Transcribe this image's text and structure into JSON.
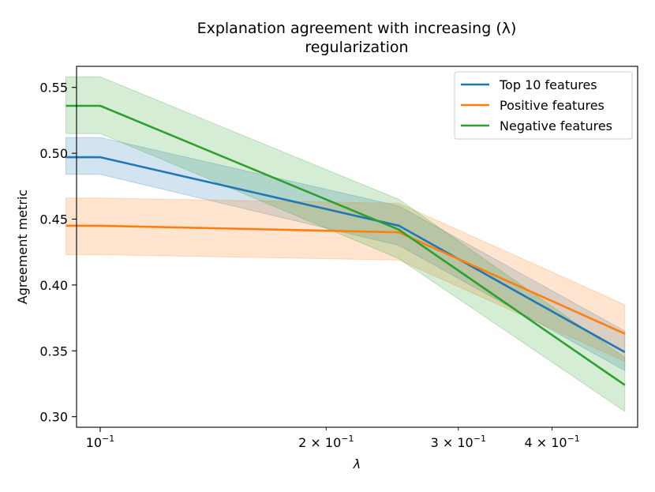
{
  "chart_data": {
    "type": "line",
    "title": [
      "Explanation agreement with increasing (λ)",
      "regularization"
    ],
    "xlabel": "λ",
    "ylabel": "Agreement metric",
    "xscale": "log",
    "xlim": [
      0.093,
      0.52
    ],
    "ylim": [
      0.292,
      0.566
    ],
    "xticks": [
      {
        "value": 0.1,
        "mantissa": "",
        "exponent": "−1"
      },
      {
        "value": 0.2,
        "mantissa": "2 × ",
        "exponent": "−1"
      },
      {
        "value": 0.3,
        "mantissa": "3 × ",
        "exponent": "−1"
      },
      {
        "value": 0.4,
        "mantissa": "4 × ",
        "exponent": "−1"
      }
    ],
    "yticks": [
      0.3,
      0.35,
      0.4,
      0.45,
      0.5,
      0.55
    ],
    "ytick_labels": [
      "0.30",
      "0.35",
      "0.40",
      "0.45",
      "0.50",
      "0.55"
    ],
    "x": [
      0.09,
      0.1,
      0.25,
      0.5
    ],
    "legend_position": "upper right",
    "series": [
      {
        "name": "Top 10 features",
        "color": "#1f77b4",
        "values": [
          0.497,
          0.497,
          0.445,
          0.349
        ],
        "lower": [
          0.484,
          0.484,
          0.43,
          0.335
        ],
        "upper": [
          0.512,
          0.512,
          0.46,
          0.365
        ]
      },
      {
        "name": "Positive features",
        "color": "#ff7f0e",
        "values": [
          0.445,
          0.445,
          0.44,
          0.363
        ],
        "lower": [
          0.423,
          0.423,
          0.419,
          0.342
        ],
        "upper": [
          0.466,
          0.466,
          0.462,
          0.385
        ]
      },
      {
        "name": "Negative features",
        "color": "#2ca02c",
        "values": [
          0.536,
          0.536,
          0.442,
          0.324
        ],
        "lower": [
          0.515,
          0.515,
          0.42,
          0.304
        ],
        "upper": [
          0.558,
          0.558,
          0.465,
          0.345
        ]
      }
    ]
  }
}
